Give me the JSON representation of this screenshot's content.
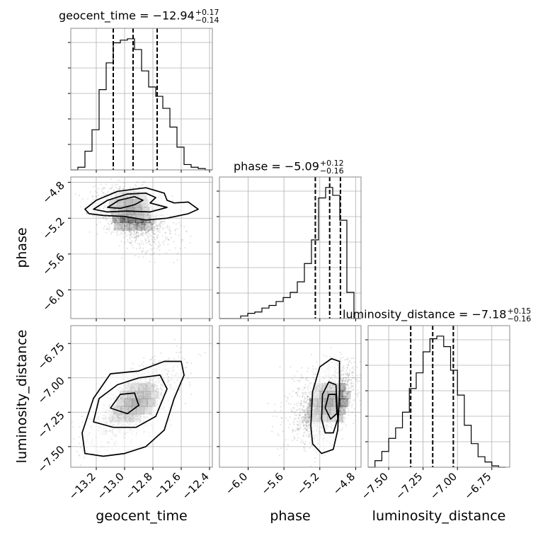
{
  "chart_data": {
    "type": "corner",
    "parameters": [
      "geocent_time",
      "phase",
      "luminosity_distance"
    ],
    "titles": [
      {
        "name": "geocent_time",
        "value": "−12.94",
        "plus": "+0.17",
        "minus": "−0.14"
      },
      {
        "name": "phase",
        "value": "−5.09",
        "plus": "+0.12",
        "minus": "−0.16"
      },
      {
        "name": "luminosity_distance",
        "value": "−7.18",
        "plus": "+0.15",
        "minus": "−0.16"
      }
    ],
    "ranges": {
      "geocent_time": [
        -13.38,
        -12.38
      ],
      "phase": [
        -6.32,
        -4.74
      ],
      "luminosity_distance": [
        -7.65,
        -6.62
      ]
    },
    "ticks": {
      "geocent_time": [
        -13.2,
        -13.0,
        -12.8,
        -12.6,
        -12.4
      ],
      "phase": [
        -6.0,
        -5.6,
        -5.2,
        -4.8
      ],
      "luminosity_distance": [
        -7.5,
        -7.25,
        -7.0,
        -6.75
      ]
    },
    "tick_labels": {
      "geocent_time": [
        "−13.2",
        "−13.0",
        "−12.8",
        "−12.6",
        "−12.4"
      ],
      "phase": [
        "−6.0",
        "−5.6",
        "−5.2",
        "−4.8"
      ],
      "luminosity_distance": [
        "−7.50",
        "−7.25",
        "−7.00",
        "−6.75"
      ]
    },
    "quantiles": {
      "geocent_time": [
        -13.08,
        -12.94,
        -12.77
      ],
      "phase": [
        -5.25,
        -5.09,
        -4.97
      ],
      "luminosity_distance": [
        -7.34,
        -7.18,
        -7.03
      ]
    },
    "hist1d": {
      "geocent_time": {
        "edges": [
          -13.38,
          -13.33,
          -13.28,
          -13.23,
          -13.18,
          -13.13,
          -13.08,
          -13.03,
          -12.98,
          -12.93,
          -12.88,
          -12.83,
          -12.78,
          -12.73,
          -12.68,
          -12.63,
          -12.58,
          -12.53,
          -12.48,
          -12.43,
          -12.38
        ],
        "counts": [
          0,
          2,
          14,
          30,
          60,
          80,
          95,
          97,
          98,
          90,
          74,
          62,
          55,
          46,
          32,
          17,
          4,
          2,
          1,
          0
        ]
      },
      "phase": {
        "edges": [
          -6.32,
          -6.241,
          -6.162,
          -6.083,
          -6.004,
          -5.925,
          -5.846,
          -5.767,
          -5.688,
          -5.609,
          -5.53,
          -5.451,
          -5.372,
          -5.293,
          -5.214,
          -5.135,
          -5.056,
          -4.977,
          -4.898,
          -4.819,
          -4.74
        ],
        "counts": [
          0,
          0,
          0,
          2,
          4,
          5,
          8,
          10,
          13,
          16,
          20,
          28,
          42,
          60,
          92,
          100,
          94,
          75,
          20,
          0
        ]
      },
      "luminosity_distance": {
        "edges": [
          -7.65,
          -7.6,
          -7.55,
          -7.5,
          -7.45,
          -7.4,
          -7.35,
          -7.3,
          -7.25,
          -7.2,
          -7.15,
          -7.1,
          -7.05,
          -7.0,
          -6.95,
          -6.9,
          -6.85,
          -6.8,
          -6.75,
          -6.7,
          -6.65
        ],
        "counts": [
          0,
          5,
          12,
          22,
          30,
          42,
          60,
          72,
          88,
          98,
          100,
          92,
          74,
          55,
          32,
          18,
          8,
          4,
          1,
          0
        ]
      }
    },
    "scatter": [
      {
        "x": "geocent_time",
        "y": "phase",
        "center": [
          -12.96,
          -5.12
        ],
        "spread": [
          0.12,
          0.12
        ],
        "corr": -0.35,
        "tail": [
          0.12,
          -0.35
        ]
      },
      {
        "x": "geocent_time",
        "y": "luminosity_distance",
        "center": [
          -12.92,
          -7.18
        ],
        "spread": [
          0.15,
          0.14
        ],
        "corr": 0.72,
        "tail": null
      },
      {
        "x": "phase",
        "y": "luminosity_distance",
        "center": [
          -5.1,
          -7.18
        ],
        "spread": [
          0.15,
          0.14
        ],
        "corr": 0.55,
        "tail": [
          -0.35,
          0.0
        ]
      }
    ],
    "contours": [
      {
        "x": "geocent_time",
        "y": "phase",
        "levels": [
          [
            [
              -13.28,
              -5.1
            ],
            [
              -13.2,
              -5.0
            ],
            [
              -13.05,
              -4.9
            ],
            [
              -12.85,
              -4.86
            ],
            [
              -12.72,
              -4.92
            ],
            [
              -12.7,
              -5.0
            ],
            [
              -12.65,
              -5.03
            ],
            [
              -12.55,
              -5.02
            ],
            [
              -12.48,
              -5.1
            ],
            [
              -12.55,
              -5.15
            ],
            [
              -12.7,
              -5.2
            ],
            [
              -12.85,
              -5.22
            ],
            [
              -13.0,
              -5.18
            ],
            [
              -13.15,
              -5.17
            ],
            [
              -13.25,
              -5.15
            ]
          ],
          [
            [
              -13.22,
              -5.1
            ],
            [
              -13.12,
              -5.0
            ],
            [
              -12.98,
              -4.93
            ],
            [
              -12.85,
              -4.92
            ],
            [
              -12.78,
              -4.97
            ],
            [
              -12.82,
              -5.03
            ],
            [
              -12.7,
              -5.08
            ],
            [
              -12.82,
              -5.13
            ],
            [
              -12.98,
              -5.12
            ],
            [
              -13.12,
              -5.13
            ]
          ],
          [
            [
              -13.12,
              -5.08
            ],
            [
              -13.04,
              -5.0
            ],
            [
              -12.93,
              -4.96
            ],
            [
              -12.87,
              -5.0
            ],
            [
              -12.93,
              -5.05
            ],
            [
              -13.03,
              -5.09
            ]
          ]
        ]
      },
      {
        "x": "geocent_time",
        "y": "luminosity_distance",
        "levels": [
          [
            [
              -13.28,
              -7.55
            ],
            [
              -13.3,
              -7.4
            ],
            [
              -13.22,
              -7.15
            ],
            [
              -13.1,
              -6.97
            ],
            [
              -12.9,
              -6.95
            ],
            [
              -12.72,
              -6.88
            ],
            [
              -12.6,
              -6.88
            ],
            [
              -12.58,
              -6.98
            ],
            [
              -12.65,
              -7.15
            ],
            [
              -12.72,
              -7.38
            ],
            [
              -12.85,
              -7.5
            ],
            [
              -13.0,
              -7.55
            ],
            [
              -13.15,
              -7.57
            ]
          ],
          [
            [
              -13.22,
              -7.32
            ],
            [
              -13.18,
              -7.15
            ],
            [
              -13.05,
              -7.05
            ],
            [
              -12.9,
              -7.0
            ],
            [
              -12.75,
              -6.98
            ],
            [
              -12.7,
              -7.08
            ],
            [
              -12.78,
              -7.28
            ],
            [
              -12.92,
              -7.36
            ],
            [
              -13.08,
              -7.36
            ]
          ],
          [
            [
              -13.1,
              -7.22
            ],
            [
              -13.03,
              -7.12
            ],
            [
              -12.93,
              -7.11
            ],
            [
              -12.9,
              -7.2
            ],
            [
              -12.98,
              -7.26
            ]
          ]
        ]
      },
      {
        "x": "phase",
        "y": "luminosity_distance",
        "levels": [
          [
            [
              -5.3,
              -7.35
            ],
            [
              -5.28,
              -7.1
            ],
            [
              -5.2,
              -6.92
            ],
            [
              -5.07,
              -6.86
            ],
            [
              -4.98,
              -6.88
            ],
            [
              -4.98,
              -7.1
            ],
            [
              -5.0,
              -7.38
            ],
            [
              -5.05,
              -7.52
            ],
            [
              -5.18,
              -7.55
            ],
            [
              -5.28,
              -7.48
            ]
          ],
          [
            [
              -5.18,
              -7.3
            ],
            [
              -5.17,
              -7.12
            ],
            [
              -5.1,
              -7.03
            ],
            [
              -5.02,
              -7.05
            ],
            [
              -5.0,
              -7.3
            ],
            [
              -5.05,
              -7.4
            ],
            [
              -5.14,
              -7.4
            ]
          ],
          [
            [
              -5.14,
              -7.22
            ],
            [
              -5.1,
              -7.12
            ],
            [
              -5.02,
              -7.12
            ],
            [
              -5.01,
              -7.26
            ],
            [
              -5.08,
              -7.3
            ]
          ]
        ]
      }
    ],
    "grid": true
  }
}
